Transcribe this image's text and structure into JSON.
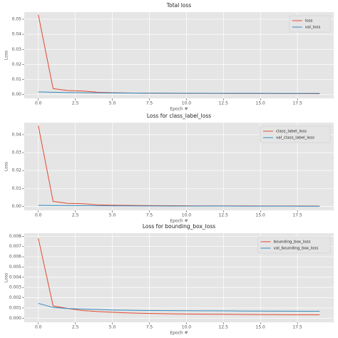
{
  "chart_data": [
    {
      "type": "line",
      "title": "Total loss",
      "x_label": "Epoch #",
      "y_label": "Loss",
      "x": [
        0,
        1,
        2,
        3,
        4,
        5,
        6,
        7,
        8,
        9,
        10,
        11,
        12,
        13,
        14,
        15,
        16,
        17,
        18,
        19
      ],
      "series": [
        {
          "name": "loss",
          "color": "#E24A33",
          "values": [
            0.053,
            0.004,
            0.0027,
            0.0024,
            0.0016,
            0.0013,
            0.0011,
            0.001,
            0.0009,
            0.00085,
            0.0008,
            0.00078,
            0.00075,
            0.00072,
            0.0007,
            0.00068,
            0.00066,
            0.00064,
            0.00062,
            0.0006
          ]
        },
        {
          "name": "val_loss",
          "color": "#348ABD",
          "values": [
            0.0018,
            0.0016,
            0.0014,
            0.0013,
            0.0012,
            0.0011,
            0.00105,
            0.001,
            0.00098,
            0.00095,
            0.00093,
            0.0009,
            0.00088,
            0.00086,
            0.00085,
            0.00084,
            0.00083,
            0.00082,
            0.00081,
            0.0008
          ]
        }
      ],
      "xlim": [
        -0.95,
        19.95
      ],
      "xticks": [
        {
          "value": 0,
          "label": "0.0"
        },
        2.5,
        {
          "value": 5,
          "label": "5.0"
        },
        7.5,
        {
          "value": 10,
          "label": "10.0"
        },
        12.5,
        {
          "value": 15,
          "label": "15.0"
        },
        17.5
      ],
      "ylim": [
        -0.0025,
        0.0547
      ],
      "yticks": [
        {
          "value": 0,
          "label": "0.00"
        },
        0.01,
        0.02,
        0.03,
        0.04,
        0.05
      ],
      "grid": true,
      "legend": "upper right"
    },
    {
      "type": "line",
      "title": "Loss for class_label_loss",
      "x_label": "Epoch #",
      "y_label": "Loss",
      "x": [
        0,
        1,
        2,
        3,
        4,
        5,
        6,
        7,
        8,
        9,
        10,
        11,
        12,
        13,
        14,
        15,
        16,
        17,
        18,
        19
      ],
      "series": [
        {
          "name": "class_label_loss",
          "color": "#E24A33",
          "values": [
            0.045,
            0.0028,
            0.0017,
            0.0015,
            0.0009,
            0.0007,
            0.0006,
            0.0005,
            0.00045,
            0.0004,
            0.00035,
            0.0003,
            0.0003,
            0.00028,
            0.00026,
            0.00025,
            0.00024,
            0.00023,
            0.00022,
            0.0002
          ]
        },
        {
          "name": "val_class_label_loss",
          "color": "#348ABD",
          "values": [
            0.0006,
            0.0005,
            0.00045,
            0.0004,
            0.00035,
            0.0003,
            0.00028,
            0.00025,
            0.00023,
            0.0002,
            0.00019,
            0.00018,
            0.00017,
            0.00016,
            0.00015,
            0.00014,
            0.00013,
            0.00012,
            0.00011,
            0.0001
          ]
        }
      ],
      "xlim": [
        -0.95,
        19.95
      ],
      "xticks": [
        {
          "value": 0,
          "label": "0.0"
        },
        2.5,
        {
          "value": 5,
          "label": "5.0"
        },
        7.5,
        {
          "value": 10,
          "label": "10.0"
        },
        12.5,
        {
          "value": 15,
          "label": "15.0"
        },
        17.5
      ],
      "ylim": [
        -0.0022,
        0.0467
      ],
      "yticks": [
        {
          "value": 0,
          "label": "0.00"
        },
        0.01,
        0.02,
        0.03,
        0.04
      ],
      "grid": true,
      "legend": "upper right"
    },
    {
      "type": "line",
      "title": "Loss for bounding_box_loss",
      "x_label": "Epoch #",
      "y_label": "Loss",
      "x": [
        0,
        1,
        2,
        3,
        4,
        5,
        6,
        7,
        8,
        9,
        10,
        11,
        12,
        13,
        14,
        15,
        16,
        17,
        18,
        19
      ],
      "series": [
        {
          "name": "bounding_box_loss",
          "color": "#E24A33",
          "values": [
            0.0078,
            0.0012,
            0.00095,
            0.00075,
            0.00065,
            0.00058,
            0.00052,
            0.00048,
            0.00045,
            0.00043,
            0.00041,
            0.0004,
            0.00039,
            0.00038,
            0.00037,
            0.00036,
            0.00035,
            0.00034,
            0.00034,
            0.00033
          ]
        },
        {
          "name": "val_bounding_box_loss",
          "color": "#348ABD",
          "values": [
            0.00145,
            0.00105,
            0.00095,
            0.0009,
            0.00085,
            0.0008,
            0.00078,
            0.00076,
            0.00075,
            0.00074,
            0.00073,
            0.00072,
            0.00072,
            0.00071,
            0.0007,
            0.0007,
            0.00069,
            0.00069,
            0.00068,
            0.00068
          ]
        }
      ],
      "xlim": [
        -0.95,
        19.95
      ],
      "xticks": [
        {
          "value": 0,
          "label": "0.0"
        },
        2.5,
        {
          "value": 5,
          "label": "5.0"
        },
        7.5,
        {
          "value": 10,
          "label": "10.0"
        },
        12.5,
        {
          "value": 15,
          "label": "15.0"
        },
        17.5
      ],
      "ylim": [
        -0.0004,
        0.0083
      ],
      "yticks": [
        {
          "value": 0,
          "label": "0.000"
        },
        0.001,
        0.002,
        0.003,
        0.004,
        0.005,
        0.006,
        0.007,
        0.008
      ],
      "grid": true,
      "legend": "upper right"
    }
  ]
}
